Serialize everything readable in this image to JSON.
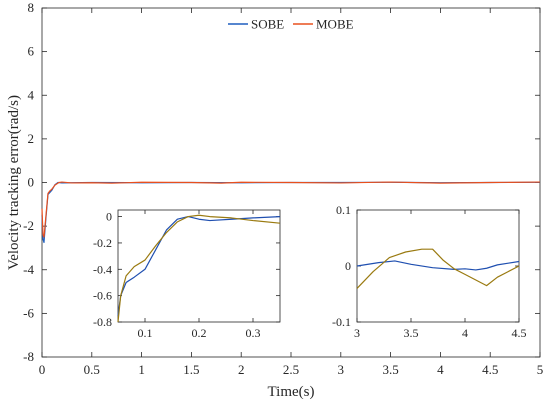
{
  "chart_data": [
    {
      "id": "main",
      "type": "line",
      "title": "",
      "xlabel": "Time(s)",
      "ylabel": "Velocity tracking error(rad/s)",
      "xlim": [
        0,
        5
      ],
      "ylim": [
        -8,
        8
      ],
      "xticks": [
        0,
        0.5,
        1,
        1.5,
        2,
        2.5,
        3,
        3.5,
        4,
        4.5,
        5
      ],
      "xtick_labels": [
        "0",
        "0.5",
        "1",
        "1.5",
        "2",
        "2.5",
        "3",
        "3.5",
        "4",
        "4.5",
        "5"
      ],
      "yticks": [
        -8,
        -6,
        -4,
        -2,
        0,
        2,
        4,
        6,
        8
      ],
      "ytick_labels": [
        "-8",
        "-6",
        "-4",
        "-2",
        "0",
        "2",
        "4",
        "6",
        "8"
      ],
      "grid": false,
      "legend": {
        "position": "top-center",
        "orientation": "horizontal"
      },
      "series": [
        {
          "name": "SOBE",
          "color": "#1f5fbf",
          "points": [
            [
              0,
              -1.5
            ],
            [
              0.01,
              -2.6
            ],
            [
              0.02,
              -2.75
            ],
            [
              0.04,
              -1.6
            ],
            [
              0.06,
              -0.55
            ],
            [
              0.08,
              -0.45
            ],
            [
              0.1,
              -0.35
            ],
            [
              0.13,
              -0.1
            ],
            [
              0.16,
              0.0
            ],
            [
              0.2,
              -0.02
            ],
            [
              0.3,
              -0.01
            ],
            [
              0.5,
              0.0
            ],
            [
              1,
              -0.01
            ],
            [
              1.5,
              0.0
            ],
            [
              2,
              -0.01
            ],
            [
              2.5,
              0.0
            ],
            [
              3,
              0.0
            ],
            [
              3.5,
              0.01
            ],
            [
              4,
              -0.01
            ],
            [
              4.5,
              0.0
            ],
            [
              5,
              0.01
            ]
          ]
        },
        {
          "name": "MOBE",
          "color": "#e8501e",
          "points": [
            [
              0,
              -1.2
            ],
            [
              0.01,
              -2.4
            ],
            [
              0.02,
              -2.5
            ],
            [
              0.04,
              -1.5
            ],
            [
              0.06,
              -0.5
            ],
            [
              0.08,
              -0.38
            ],
            [
              0.1,
              -0.3
            ],
            [
              0.13,
              -0.12
            ],
            [
              0.17,
              0.0
            ],
            [
              0.2,
              0.02
            ],
            [
              0.3,
              -0.02
            ],
            [
              0.5,
              -0.01
            ],
            [
              0.7,
              -0.03
            ],
            [
              1,
              0.01
            ],
            [
              1.5,
              0.0
            ],
            [
              1.8,
              -0.03
            ],
            [
              2,
              0.01
            ],
            [
              2.5,
              0.0
            ],
            [
              3,
              -0.02
            ],
            [
              3.5,
              0.02
            ],
            [
              4,
              -0.03
            ],
            [
              4.5,
              0.0
            ],
            [
              5,
              0.02
            ]
          ]
        }
      ]
    },
    {
      "id": "inset-left",
      "type": "line",
      "xlim": [
        0.05,
        0.35
      ],
      "ylim": [
        -0.8,
        0.05
      ],
      "xticks": [
        0.1,
        0.2,
        0.3
      ],
      "xtick_labels": [
        "0.1",
        "0.2",
        "0.3"
      ],
      "yticks": [
        -0.8,
        -0.6,
        -0.4,
        -0.2,
        0
      ],
      "ytick_labels": [
        "-0.8",
        "-0.6",
        "-0.4",
        "-0.2",
        "0"
      ],
      "series": [
        {
          "color": "#1f4fb0",
          "points": [
            [
              0.05,
              -0.75
            ],
            [
              0.055,
              -0.6
            ],
            [
              0.065,
              -0.5
            ],
            [
              0.08,
              -0.46
            ],
            [
              0.1,
              -0.4
            ],
            [
              0.12,
              -0.25
            ],
            [
              0.14,
              -0.1
            ],
            [
              0.16,
              -0.02
            ],
            [
              0.18,
              0.0
            ],
            [
              0.2,
              -0.02
            ],
            [
              0.22,
              -0.03
            ],
            [
              0.26,
              -0.02
            ],
            [
              0.3,
              -0.01
            ],
            [
              0.35,
              0.0
            ]
          ]
        },
        {
          "color": "#9a7a10",
          "points": [
            [
              0.05,
              -0.8
            ],
            [
              0.055,
              -0.6
            ],
            [
              0.065,
              -0.45
            ],
            [
              0.08,
              -0.38
            ],
            [
              0.1,
              -0.33
            ],
            [
              0.12,
              -0.22
            ],
            [
              0.14,
              -0.12
            ],
            [
              0.16,
              -0.04
            ],
            [
              0.18,
              0.0
            ],
            [
              0.2,
              0.01
            ],
            [
              0.22,
              0.0
            ],
            [
              0.26,
              -0.01
            ],
            [
              0.3,
              -0.03
            ],
            [
              0.35,
              -0.05
            ]
          ]
        }
      ]
    },
    {
      "id": "inset-right",
      "type": "line",
      "xlim": [
        3,
        4.5
      ],
      "ylim": [
        -0.1,
        0.1
      ],
      "xticks": [
        3,
        3.5,
        4,
        4.5
      ],
      "xtick_labels": [
        "3",
        "3.5",
        "4",
        "4.5"
      ],
      "yticks": [
        -0.1,
        0,
        0.1
      ],
      "ytick_labels": [
        "-0.1",
        "0",
        "0.1"
      ],
      "series": [
        {
          "color": "#1f4fb0",
          "points": [
            [
              3,
              0.0
            ],
            [
              3.2,
              0.006
            ],
            [
              3.35,
              0.009
            ],
            [
              3.5,
              0.003
            ],
            [
              3.7,
              -0.003
            ],
            [
              3.9,
              -0.006
            ],
            [
              4.0,
              -0.005
            ],
            [
              4.1,
              -0.007
            ],
            [
              4.2,
              -0.004
            ],
            [
              4.3,
              0.002
            ],
            [
              4.4,
              0.005
            ],
            [
              4.5,
              0.008
            ]
          ]
        },
        {
          "color": "#9a7a10",
          "points": [
            [
              3,
              -0.04
            ],
            [
              3.15,
              -0.01
            ],
            [
              3.3,
              0.015
            ],
            [
              3.45,
              0.025
            ],
            [
              3.6,
              0.03
            ],
            [
              3.7,
              0.03
            ],
            [
              3.8,
              0.01
            ],
            [
              3.9,
              -0.005
            ],
            [
              4.0,
              -0.015
            ],
            [
              4.1,
              -0.025
            ],
            [
              4.2,
              -0.035
            ],
            [
              4.3,
              -0.02
            ],
            [
              4.4,
              -0.01
            ],
            [
              4.5,
              0.0
            ]
          ]
        }
      ]
    }
  ]
}
